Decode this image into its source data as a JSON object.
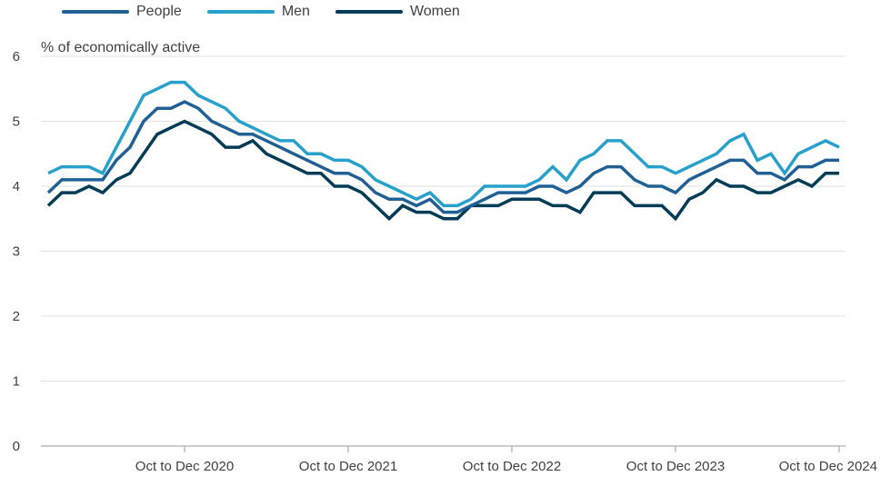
{
  "chart_data": {
    "type": "line",
    "ylabel": "% of economically active",
    "ylim": [
      0,
      6
    ],
    "yticks": [
      "0",
      "1",
      "2",
      "3",
      "4",
      "5",
      "6"
    ],
    "xtick_labels": [
      "Oct to Dec 2020",
      "Oct to Dec 2021",
      "Oct to Dec 2022",
      "Oct to Dec 2023",
      "Oct to Dec 2024"
    ],
    "xtick_index": [
      10,
      22,
      34,
      46,
      58
    ],
    "grid": true,
    "legend_position": "top-left",
    "series": [
      {
        "name": "People",
        "color": "#206095",
        "values": [
          3.9,
          4.1,
          4.1,
          4.1,
          4.1,
          4.4,
          4.6,
          5.0,
          5.2,
          5.2,
          5.3,
          5.2,
          5.0,
          4.9,
          4.8,
          4.8,
          4.7,
          4.6,
          4.5,
          4.4,
          4.3,
          4.2,
          4.2,
          4.1,
          3.9,
          3.8,
          3.8,
          3.7,
          3.8,
          3.6,
          3.6,
          3.7,
          3.8,
          3.9,
          3.9,
          3.9,
          4.0,
          4.0,
          3.9,
          4.0,
          4.2,
          4.3,
          4.3,
          4.1,
          4.0,
          4.0,
          3.9,
          4.1,
          4.2,
          4.3,
          4.4,
          4.4,
          4.2,
          4.2,
          4.1,
          4.3,
          4.3,
          4.4,
          4.4
        ]
      },
      {
        "name": "Men",
        "color": "#27a0cc",
        "values": [
          4.2,
          4.3,
          4.3,
          4.3,
          4.2,
          4.6,
          5.0,
          5.4,
          5.5,
          5.6,
          5.6,
          5.4,
          5.3,
          5.2,
          5.0,
          4.9,
          4.8,
          4.7,
          4.7,
          4.5,
          4.5,
          4.4,
          4.4,
          4.3,
          4.1,
          4.0,
          3.9,
          3.8,
          3.9,
          3.7,
          3.7,
          3.8,
          4.0,
          4.0,
          4.0,
          4.0,
          4.1,
          4.3,
          4.1,
          4.4,
          4.5,
          4.7,
          4.7,
          4.5,
          4.3,
          4.3,
          4.2,
          4.3,
          4.4,
          4.5,
          4.7,
          4.8,
          4.4,
          4.5,
          4.2,
          4.5,
          4.6,
          4.7,
          4.6
        ]
      },
      {
        "name": "Women",
        "color": "#003c57",
        "values": [
          3.7,
          3.9,
          3.9,
          4.0,
          3.9,
          4.1,
          4.2,
          4.5,
          4.8,
          4.9,
          5.0,
          4.9,
          4.8,
          4.6,
          4.6,
          4.7,
          4.5,
          4.4,
          4.3,
          4.2,
          4.2,
          4.0,
          4.0,
          3.9,
          3.7,
          3.5,
          3.7,
          3.6,
          3.6,
          3.5,
          3.5,
          3.7,
          3.7,
          3.7,
          3.8,
          3.8,
          3.8,
          3.7,
          3.7,
          3.6,
          3.9,
          3.9,
          3.9,
          3.7,
          3.7,
          3.7,
          3.5,
          3.8,
          3.9,
          4.1,
          4.0,
          4.0,
          3.9,
          3.9,
          4.0,
          4.1,
          4.0,
          4.2,
          4.2
        ]
      }
    ]
  }
}
